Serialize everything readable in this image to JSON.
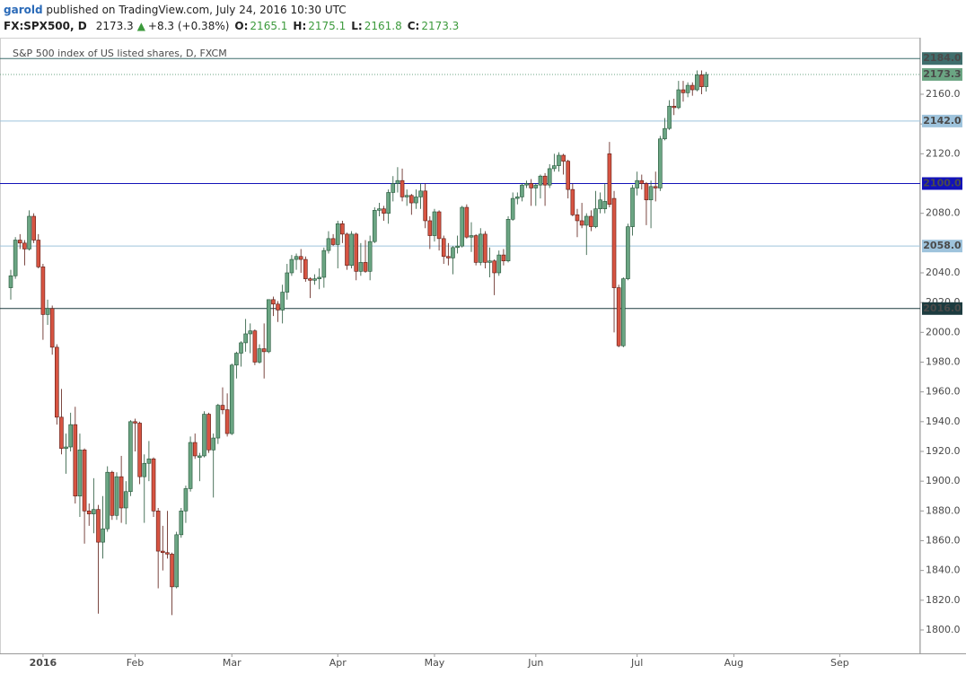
{
  "header": {
    "author": "garold",
    "published": "published on TradingView.com, July 24, 2016 10:30 UTC",
    "symbol": "FX:SPX500, D",
    "last": "2173.3",
    "change": "+8.3 (+0.38%)",
    "open_label": "O:",
    "open": "2165.1",
    "high_label": "H:",
    "high": "2175.1",
    "low_label": "L:",
    "low": "2161.8",
    "close_label": "C:",
    "close": "2173.3"
  },
  "chart_data": {
    "type": "candlestick",
    "title": "S&P 500 index of US listed shares, D, FXCM",
    "up_color": "#6ba583",
    "down_color": "#d75442",
    "up_border": "#225437",
    "down_border": "#5b1a13",
    "ylim": [
      1784.3,
      2198
    ],
    "yticks": [
      {
        "value": 1800,
        "label": "1800.0"
      },
      {
        "value": 1820,
        "label": "1820.0"
      },
      {
        "value": 1840,
        "label": "1840.0"
      },
      {
        "value": 1860,
        "label": "1860.0"
      },
      {
        "value": 1880,
        "label": "1880.0"
      },
      {
        "value": 1900,
        "label": "1900.0"
      },
      {
        "value": 1920,
        "label": "1920.0"
      },
      {
        "value": 1940,
        "label": "1940.0"
      },
      {
        "value": 1960,
        "label": "1960.0"
      },
      {
        "value": 1980,
        "label": "1980.0"
      },
      {
        "value": 2000,
        "label": "2000.0"
      },
      {
        "value": 2020,
        "label": "2020.0"
      },
      {
        "value": 2040,
        "label": "2040.0"
      },
      {
        "value": 2080,
        "label": "2080.0"
      },
      {
        "value": 2120,
        "label": "2120.0"
      },
      {
        "value": 2140,
        "label": "2140.0"
      },
      {
        "value": 2160,
        "label": "2160.0"
      }
    ],
    "xticks": [
      {
        "value": 7,
        "label": "2016"
      },
      {
        "value": 27,
        "label": "Feb"
      },
      {
        "value": 48,
        "label": "Mar"
      },
      {
        "value": 71,
        "label": "Apr"
      },
      {
        "value": 92,
        "label": "May"
      },
      {
        "value": 114,
        "label": "Jun"
      },
      {
        "value": 136,
        "label": "Jul"
      },
      {
        "value": 157,
        "label": "Aug"
      },
      {
        "value": 180,
        "label": "Sep"
      }
    ],
    "hlines": [
      {
        "value": 2184,
        "label": "2184.0",
        "color": "#3f6e6c",
        "style": "solid"
      },
      {
        "value": 2173.3,
        "label": "2173.3",
        "color": "#6ba583",
        "style": "dotted"
      },
      {
        "value": 2142,
        "label": "2142.0",
        "color": "#9ec3dc",
        "style": "solid"
      },
      {
        "value": 2100,
        "label": "2100.0",
        "color": "#1212b8",
        "style": "solid"
      },
      {
        "value": 2058,
        "label": "2058.0",
        "color": "#9ec3dc",
        "style": "solid"
      },
      {
        "value": 2016,
        "label": "2016.0",
        "color": "#1c3b3f",
        "style": "solid"
      }
    ],
    "open": [
      2030,
      2038,
      2062,
      2060,
      2056,
      2078,
      2062,
      2044,
      2012,
      2016,
      1990,
      1943,
      1922,
      1923,
      1938,
      1890,
      1921,
      1880,
      1878,
      1881,
      1859,
      1868,
      1906,
      1877,
      1903,
      1882,
      1893,
      1940,
      1939,
      1903,
      1912,
      1915,
      1880,
      1853,
      1852,
      1851,
      1829,
      1864,
      1880,
      1895,
      1926,
      1916,
      1917,
      1945,
      1921,
      1929,
      1951,
      1948,
      1932,
      1978,
      1986,
      1993,
      1999,
      2001,
      1980,
      1989,
      1987,
      2022,
      2019,
      2015,
      2027,
      2040,
      2049,
      2051,
      2049,
      2036,
      2035,
      2036,
      2037,
      2055,
      2063,
      2059,
      2073,
      2066,
      2045,
      2066,
      2041,
      2047,
      2041,
      2061,
      2082,
      2083,
      2080,
      2094,
      2100,
      2102,
      2091,
      2092,
      2087,
      2091,
      2095,
      2075,
      2065,
      2081,
      2063,
      2051,
      2050,
      2057,
      2058,
      2084,
      2064,
      2065,
      2047,
      2066,
      2047,
      2048,
      2040,
      2052,
      2048,
      2076,
      2090,
      2091,
      2099,
      2100,
      2097,
      2099,
      2105,
      2099,
      2110,
      2112,
      2119,
      2115,
      2096,
      2079,
      2075,
      2072,
      2078,
      2071,
      2083,
      2083,
      2120,
      2090,
      2030,
      1991,
      2036,
      2071,
      2097,
      2102,
      2100,
      2089,
      2098,
      2097,
      2130,
      2137,
      2152,
      2151,
      2163,
      2161,
      2166,
      2163,
      2173,
      2165.1
    ],
    "high": [
      2042,
      2064,
      2066,
      2062,
      2082,
      2080,
      2066,
      2046,
      2022,
      2018,
      1992,
      1962,
      1932,
      1946,
      1950,
      1932,
      1922,
      1885,
      1902,
      1884,
      1890,
      1910,
      1907,
      1906,
      1917,
      1900,
      1941,
      1942,
      1940,
      1918,
      1927,
      1916,
      1882,
      1870,
      1880,
      1852,
      1866,
      1882,
      1897,
      1930,
      1932,
      1919,
      1947,
      1946,
      1932,
      1952,
      1963,
      1959,
      1979,
      1987,
      1994,
      2009,
      2006,
      2002,
      1992,
      2006,
      2022,
      2024,
      2021,
      2032,
      2046,
      2052,
      2053,
      2056,
      2051,
      2037,
      2039,
      2043,
      2057,
      2068,
      2066,
      2075,
      2075,
      2067,
      2068,
      2067,
      2060,
      2062,
      2065,
      2084,
      2087,
      2085,
      2096,
      2105,
      2111,
      2110,
      2096,
      2093,
      2096,
      2100,
      2100,
      2078,
      2083,
      2082,
      2065,
      2060,
      2058,
      2065,
      2085,
      2086,
      2074,
      2066,
      2070,
      2068,
      2057,
      2049,
      2055,
      2056,
      2078,
      2094,
      2094,
      2100,
      2102,
      2103,
      2100,
      2106,
      2107,
      2113,
      2120,
      2121,
      2120,
      2116,
      2100,
      2083,
      2087,
      2080,
      2082,
      2095,
      2094,
      2100,
      2128,
      2095,
      2032,
      2037,
      2073,
      2099,
      2108,
      2106,
      2101,
      2102,
      2108,
      2132,
      2144,
      2156,
      2157,
      2169,
      2169,
      2168,
      2168,
      2176,
      2176,
      2175.1
    ],
    "low": [
      2022,
      2036,
      2056,
      2045,
      2055,
      2060,
      2043,
      1995,
      2005,
      1985,
      1938,
      1918,
      1905,
      1920,
      1885,
      1876,
      1858,
      1870,
      1865,
      1811,
      1848,
      1866,
      1874,
      1874,
      1872,
      1871,
      1890,
      1920,
      1898,
      1872,
      1900,
      1876,
      1828,
      1840,
      1848,
      1810,
      1828,
      1862,
      1872,
      1893,
      1915,
      1900,
      1916,
      1919,
      1889,
      1925,
      1945,
      1930,
      1931,
      1969,
      1977,
      1987,
      1986,
      1978,
      1979,
      1969,
      1986,
      2011,
      2007,
      2006,
      2022,
      2038,
      2042,
      2040,
      2034,
      2023,
      2032,
      2029,
      2030,
      2053,
      2058,
      2043,
      2060,
      2042,
      2043,
      2035,
      2038,
      2040,
      2035,
      2060,
      2078,
      2075,
      2073,
      2088,
      2094,
      2088,
      2085,
      2079,
      2083,
      2083,
      2070,
      2056,
      2061,
      2055,
      2046,
      2045,
      2039,
      2053,
      2057,
      2063,
      2054,
      2045,
      2045,
      2043,
      2037,
      2025,
      2038,
      2045,
      2047,
      2075,
      2086,
      2088,
      2097,
      2085,
      2085,
      2090,
      2085,
      2097,
      2108,
      2108,
      2106,
      2090,
      2078,
      2064,
      2070,
      2052,
      2068,
      2070,
      2080,
      2080,
      2084,
      2000,
      1990,
      1990,
      2035,
      2065,
      2092,
      2096,
      2072,
      2070,
      2088,
      2095,
      2129,
      2136,
      2146,
      2150,
      2155,
      2158,
      2159,
      2162,
      2160,
      2161.8
    ],
    "close": [
      2038,
      2062,
      2060,
      2056,
      2078,
      2062,
      2044,
      2012,
      2016,
      1990,
      1943,
      1922,
      1923,
      1938,
      1890,
      1921,
      1880,
      1878,
      1881,
      1859,
      1868,
      1906,
      1877,
      1903,
      1882,
      1893,
      1940,
      1939,
      1903,
      1912,
      1915,
      1880,
      1853,
      1852,
      1851,
      1829,
      1864,
      1880,
      1895,
      1926,
      1917,
      1917,
      1945,
      1921,
      1929,
      1951,
      1948,
      1932,
      1978,
      1986,
      1993,
      1999,
      2001,
      1980,
      1989,
      1987,
      2022,
      2019,
      2015,
      2027,
      2040,
      2049,
      2051,
      2049,
      2036,
      2035,
      2036,
      2037,
      2055,
      2063,
      2059,
      2073,
      2066,
      2045,
      2066,
      2041,
      2047,
      2041,
      2061,
      2082,
      2083,
      2080,
      2094,
      2100,
      2102,
      2091,
      2092,
      2087,
      2091,
      2095,
      2075,
      2065,
      2081,
      2063,
      2051,
      2050,
      2057,
      2058,
      2084,
      2064,
      2065,
      2047,
      2066,
      2047,
      2048,
      2040,
      2052,
      2048,
      2076,
      2090,
      2091,
      2099,
      2100,
      2097,
      2099,
      2105,
      2099,
      2110,
      2112,
      2119,
      2115,
      2096,
      2079,
      2075,
      2072,
      2078,
      2071,
      2083,
      2089,
      2088,
      2086,
      2030,
      1991,
      2036,
      2071,
      2097,
      2102,
      2100,
      2089,
      2098,
      2097,
      2130,
      2137,
      2152,
      2151,
      2163,
      2161,
      2166,
      2163,
      2173,
      2165,
      2173.3
    ]
  }
}
